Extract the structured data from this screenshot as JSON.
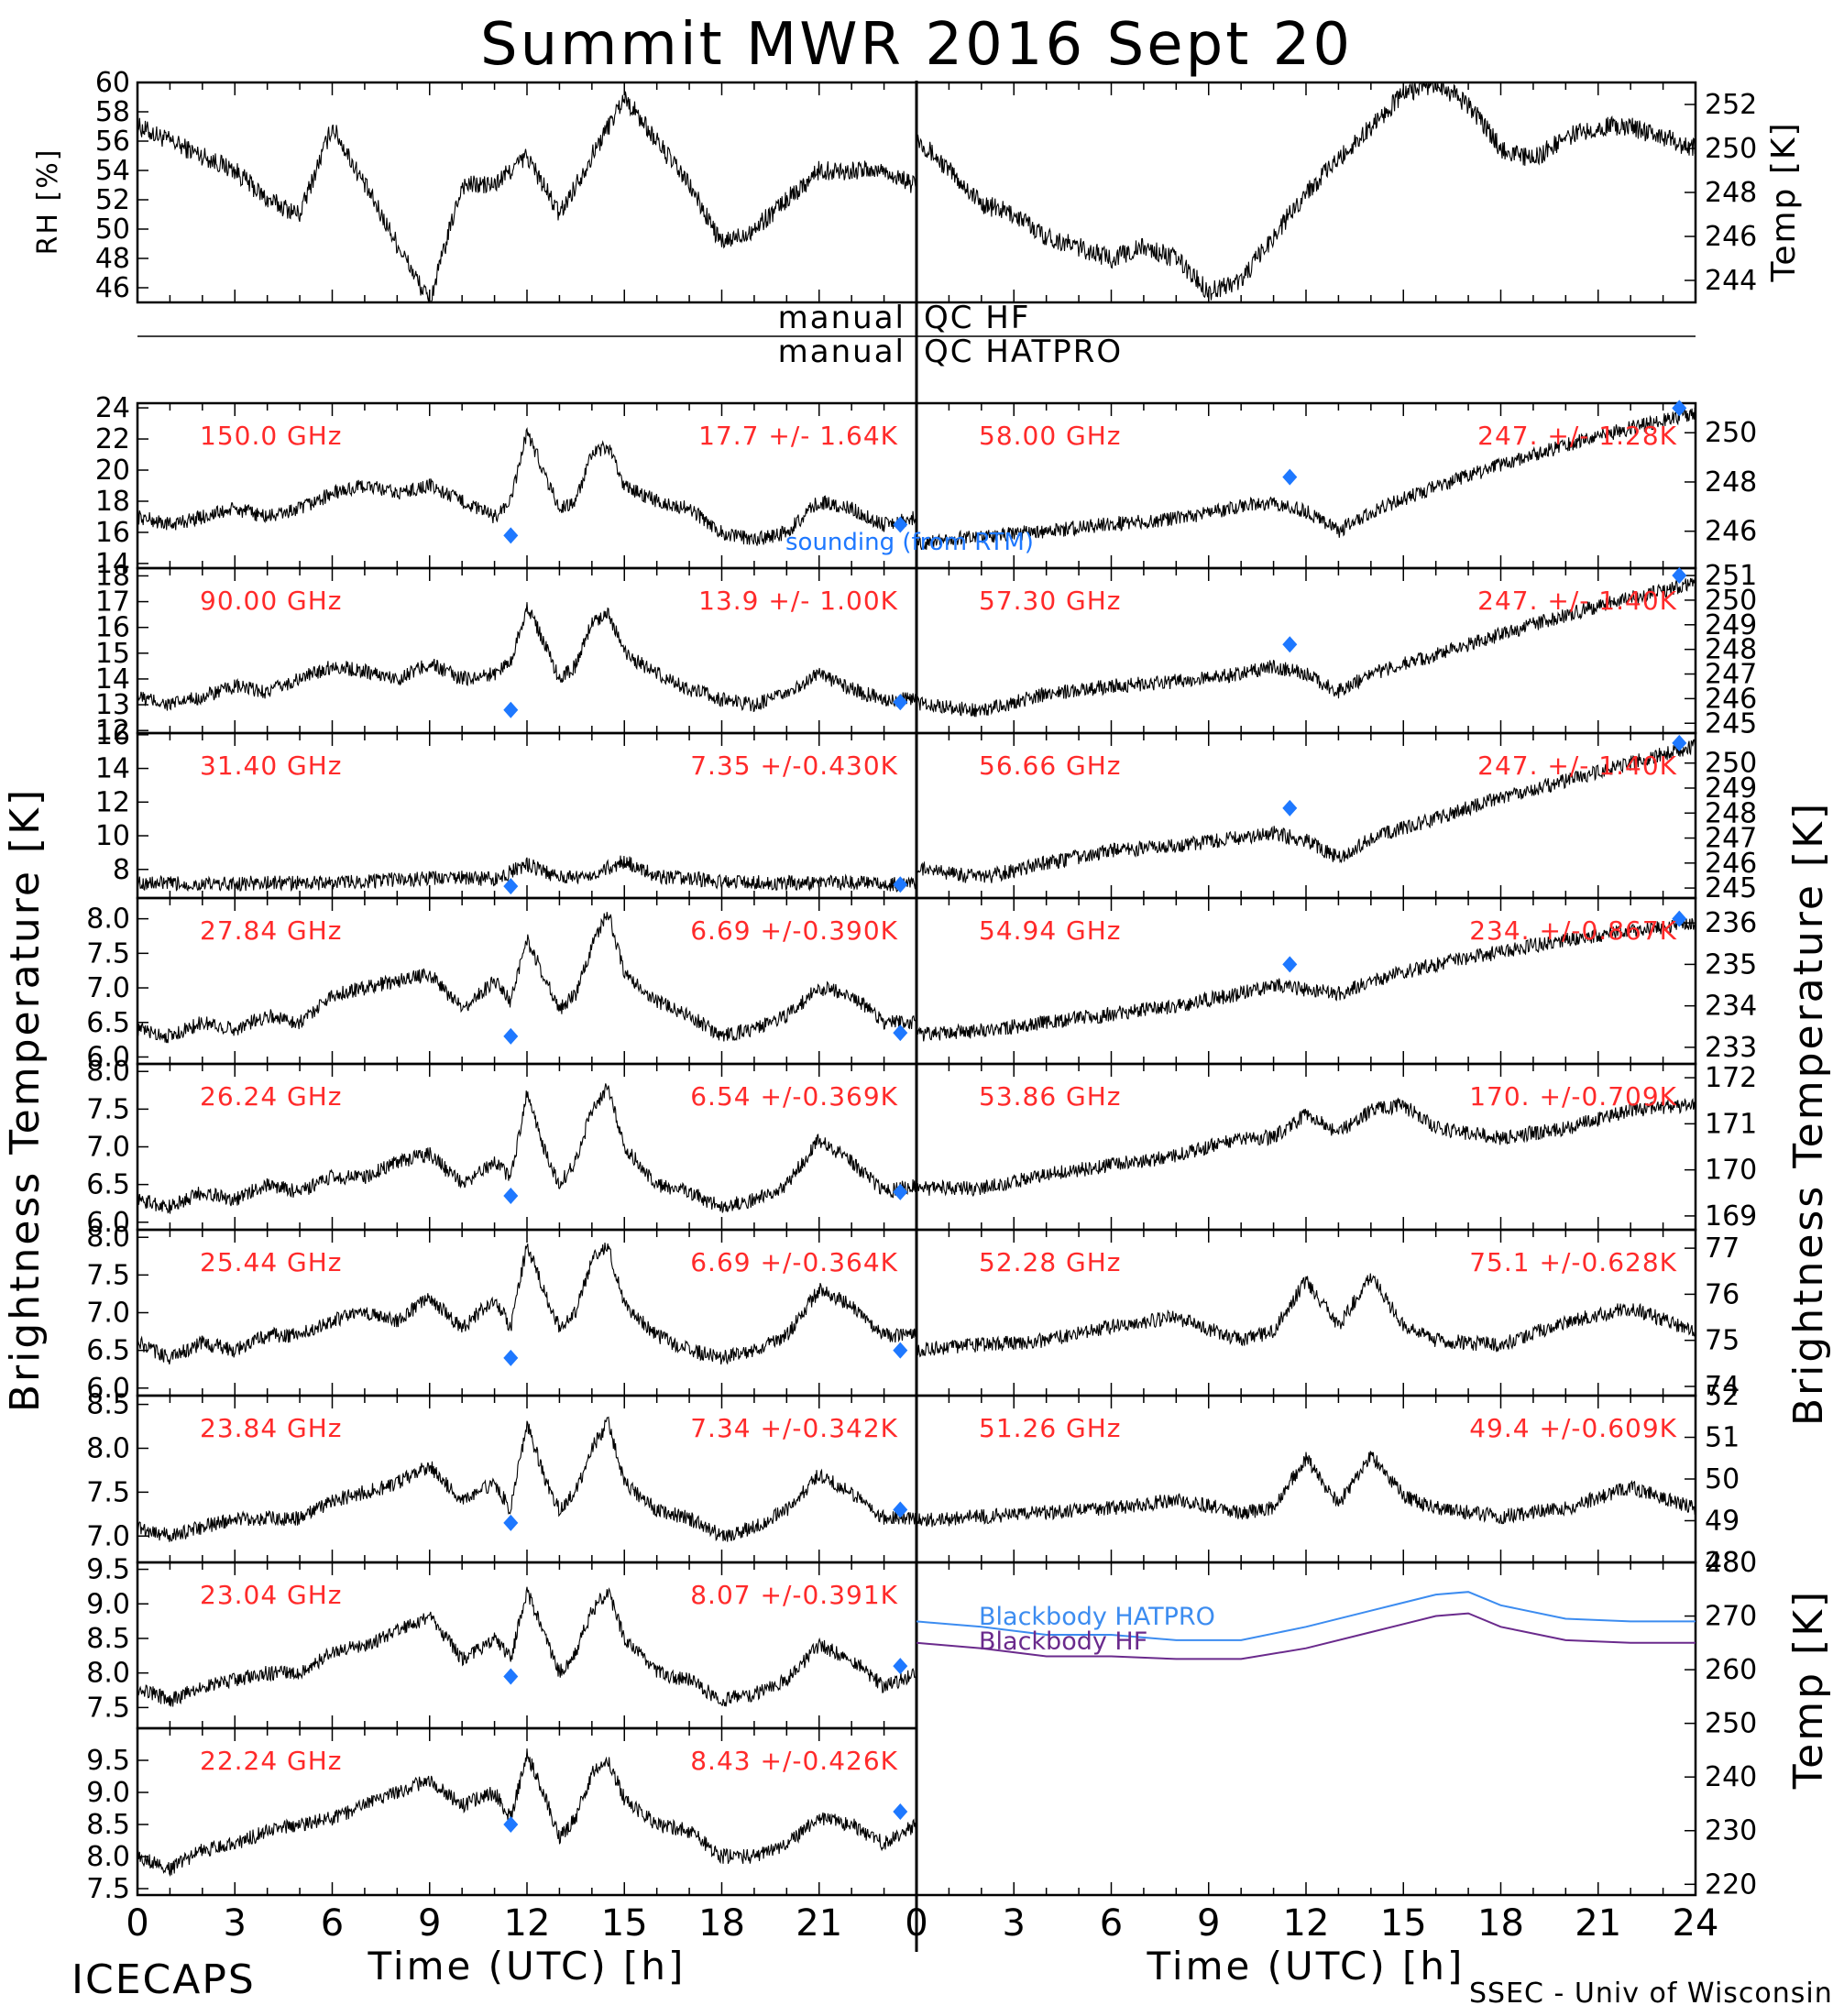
{
  "title": "Summit MWR 2016 Sept 20",
  "footer": {
    "left_label": "ICECAPS",
    "right_label": "SSEC - Univ of Wisconsin"
  },
  "axis_labels": {
    "time_left": "Time (UTC) [h]",
    "time_right": "Time (UTC) [h]",
    "bt_left": "Brightness Temperature [K]",
    "bt_right": "Brightness Temperature [K]",
    "rh": "RH [%]",
    "temp_top": "Temp [K]",
    "temp_bottom": "Temp [K]"
  },
  "qc_labels": {
    "hf_left": "manual",
    "hf_right": "QC HF",
    "hatpro_left": "manual",
    "hatpro_right": "QC HATPRO"
  },
  "sounding_label": "sounding (from RTM)",
  "colors": {
    "data": "#000000",
    "annotation": "#ff2a2a",
    "sounding": "#1e78ff",
    "blackbody_hatpro": "#3c8cf0",
    "blackbody_hf": "#6a2a8c"
  },
  "time_ticks": [
    "0",
    "3",
    "6",
    "9",
    "12",
    "15",
    "18",
    "21",
    "24"
  ],
  "time_ticks_left_visible": [
    "0",
    "3",
    "6",
    "9",
    "12",
    "15",
    "18",
    "21"
  ],
  "chart_data": [
    {
      "id": "rh",
      "type": "line",
      "ylabel": "RH [%]",
      "ylim": [
        45,
        60
      ],
      "yticks": [
        "46",
        "48",
        "50",
        "52",
        "54",
        "56",
        "58",
        "60"
      ],
      "x": [
        0,
        1,
        2,
        3,
        4,
        5,
        6,
        7,
        8,
        9,
        10,
        11,
        12,
        13,
        14,
        15,
        16,
        17,
        18,
        19,
        20,
        21,
        22,
        23,
        23.9
      ],
      "values": [
        57,
        56,
        55,
        54,
        52,
        51,
        57,
        53,
        49,
        45,
        53,
        53,
        55,
        51,
        55,
        59,
        56,
        53,
        49,
        50,
        52,
        54,
        54,
        54,
        53
      ]
    },
    {
      "id": "air-temp",
      "type": "line",
      "ylabel": "Temp [K]",
      "ylim": [
        243,
        253
      ],
      "yticks": [
        "244",
        "246",
        "248",
        "250",
        "252"
      ],
      "x": [
        0,
        1,
        2,
        3,
        4,
        5,
        6,
        7,
        8,
        9,
        10,
        11,
        12,
        13,
        14,
        15,
        16,
        17,
        18,
        19,
        20,
        21,
        22,
        23,
        23.9
      ],
      "values": [
        250.5,
        249,
        247.5,
        247,
        246,
        245.5,
        245,
        245.5,
        245,
        243.5,
        244,
        246,
        248,
        249.5,
        251,
        252.5,
        253,
        252,
        250,
        249.5,
        250.5,
        251,
        251,
        250.5,
        250
      ]
    },
    {
      "id": "tb-150",
      "type": "line",
      "freq_label": "150.0 GHz",
      "stats_label": "17.7 +/-  1.64K",
      "ylim": [
        13.7,
        24.3
      ],
      "yticks": [
        "14",
        "16",
        "18",
        "20",
        "22",
        "24"
      ],
      "x": [
        0,
        1,
        2,
        3,
        4,
        5,
        6,
        7,
        8,
        9,
        10,
        11,
        11.5,
        12,
        12.5,
        13,
        13.5,
        14,
        14.5,
        15,
        16,
        17,
        18,
        19,
        20,
        21,
        22,
        23,
        24
      ],
      "values": [
        17,
        16.5,
        17,
        17.5,
        17,
        17.5,
        18.5,
        19,
        18.5,
        19,
        18,
        17,
        18,
        22.5,
        20,
        17.5,
        18,
        21,
        21.5,
        19,
        18,
        17.5,
        16,
        15.5,
        16,
        18,
        17.5,
        16.5,
        17
      ],
      "sounding": [
        [
          11.5,
          15.8
        ],
        [
          23.5,
          16.5
        ]
      ]
    },
    {
      "id": "tb-90",
      "type": "line",
      "freq_label": "90.00 GHz",
      "stats_label": "13.9 +/-  1.00K",
      "ylim": [
        11.9,
        18.3
      ],
      "yticks": [
        "12",
        "13",
        "14",
        "15",
        "16",
        "17",
        "18"
      ],
      "x": [
        0,
        1,
        2,
        3,
        4,
        5,
        6,
        7,
        8,
        9,
        10,
        11,
        11.5,
        12,
        12.5,
        13,
        13.5,
        14,
        14.5,
        15,
        16,
        17,
        18,
        19,
        20,
        21,
        22,
        23,
        24
      ],
      "values": [
        13.3,
        13,
        13.3,
        13.7,
        13.5,
        14,
        14.5,
        14.3,
        14,
        14.6,
        14,
        14.2,
        14.7,
        16.8,
        15.5,
        14,
        14.5,
        16.2,
        16.6,
        15,
        14.2,
        13.6,
        13.2,
        13,
        13.4,
        14.2,
        13.6,
        13.2,
        13.2
      ],
      "sounding": [
        [
          11.5,
          12.8
        ],
        [
          23.5,
          13.1
        ]
      ]
    },
    {
      "id": "tb-31",
      "type": "line",
      "freq_label": "31.40 GHz",
      "stats_label": "7.35 +/-0.430K",
      "ylim": [
        6.3,
        16.1
      ],
      "yticks": [
        "8",
        "10",
        "12",
        "14",
        "16"
      ],
      "x": [
        0,
        2,
        4,
        6,
        8,
        10,
        11,
        12,
        13,
        14,
        15,
        16,
        18,
        20,
        22,
        24
      ],
      "values": [
        7.2,
        7.1,
        7.2,
        7.2,
        7.4,
        7.5,
        7.4,
        8.3,
        7.5,
        7.7,
        8.5,
        7.6,
        7.3,
        7.2,
        7.2,
        7.1
      ],
      "sounding": [
        [
          11.5,
          7.0
        ],
        [
          23.5,
          7.1
        ]
      ]
    },
    {
      "id": "tb-27",
      "type": "line",
      "freq_label": "27.84 GHz",
      "stats_label": "6.69 +/-0.390K",
      "ylim": [
        5.9,
        8.3
      ],
      "yticks": [
        "6.0",
        "6.5",
        "7.0",
        "7.5",
        "8.0"
      ],
      "x": [
        0,
        1,
        2,
        3,
        4,
        5,
        6,
        7,
        8,
        9,
        10,
        11,
        11.5,
        12,
        12.5,
        13,
        13.5,
        14,
        14.5,
        15,
        16,
        17,
        18,
        19,
        20,
        21,
        22,
        23,
        24
      ],
      "values": [
        6.4,
        6.3,
        6.5,
        6.4,
        6.6,
        6.5,
        6.9,
        7.0,
        7.1,
        7.2,
        6.7,
        7.1,
        6.8,
        7.7,
        7.2,
        6.7,
        6.9,
        7.6,
        8.1,
        7.2,
        6.8,
        6.6,
        6.3,
        6.4,
        6.6,
        7.0,
        6.9,
        6.5,
        6.5
      ],
      "sounding": [
        [
          11.5,
          6.3
        ],
        [
          23.5,
          6.35
        ]
      ]
    },
    {
      "id": "tb-26",
      "type": "line",
      "freq_label": "26.24 GHz",
      "stats_label": "6.54 +/-0.369K",
      "ylim": [
        5.9,
        8.1
      ],
      "yticks": [
        "6.0",
        "6.5",
        "7.0",
        "7.5",
        "8.0"
      ],
      "x": [
        0,
        1,
        2,
        3,
        4,
        5,
        6,
        7,
        8,
        9,
        10,
        11,
        11.5,
        12,
        12.5,
        13,
        13.5,
        14,
        14.5,
        15,
        16,
        17,
        18,
        19,
        20,
        21,
        22,
        23,
        24
      ],
      "values": [
        6.3,
        6.2,
        6.4,
        6.3,
        6.5,
        6.4,
        6.6,
        6.6,
        6.8,
        6.9,
        6.5,
        6.8,
        6.6,
        7.7,
        7.0,
        6.5,
        6.8,
        7.5,
        7.8,
        7.0,
        6.5,
        6.4,
        6.2,
        6.3,
        6.5,
        7.1,
        6.8,
        6.4,
        6.5
      ],
      "sounding": [
        [
          11.5,
          6.35
        ],
        [
          23.5,
          6.4
        ]
      ]
    },
    {
      "id": "tb-25",
      "type": "line",
      "freq_label": "25.44 GHz",
      "stats_label": "6.69 +/-0.364K",
      "ylim": [
        5.9,
        8.1
      ],
      "yticks": [
        "6.0",
        "6.5",
        "7.0",
        "7.5",
        "8.0"
      ],
      "x": [
        0,
        1,
        2,
        3,
        4,
        5,
        6,
        7,
        8,
        9,
        10,
        11,
        11.5,
        12,
        12.5,
        13,
        13.5,
        14,
        14.5,
        15,
        16,
        17,
        18,
        19,
        20,
        21,
        22,
        23,
        24
      ],
      "values": [
        6.6,
        6.4,
        6.6,
        6.5,
        6.7,
        6.7,
        6.9,
        7.0,
        6.9,
        7.2,
        6.8,
        7.2,
        6.8,
        7.9,
        7.3,
        6.8,
        7.0,
        7.7,
        7.9,
        7.1,
        6.7,
        6.5,
        6.4,
        6.5,
        6.7,
        7.3,
        7.1,
        6.7,
        6.7
      ],
      "sounding": [
        [
          11.5,
          6.4
        ],
        [
          23.5,
          6.5
        ]
      ]
    },
    {
      "id": "tb-23-84",
      "type": "line",
      "freq_label": "23.84 GHz",
      "stats_label": "7.34 +/-0.342K",
      "ylim": [
        6.7,
        8.6
      ],
      "yticks": [
        "7.0",
        "7.5",
        "8.0",
        "8.5"
      ],
      "x": [
        0,
        1,
        2,
        3,
        4,
        5,
        6,
        7,
        8,
        9,
        10,
        11,
        11.5,
        12,
        12.5,
        13,
        13.5,
        14,
        14.5,
        15,
        16,
        17,
        18,
        19,
        20,
        21,
        22,
        23,
        24
      ],
      "values": [
        7.1,
        7.0,
        7.1,
        7.2,
        7.2,
        7.2,
        7.4,
        7.5,
        7.6,
        7.8,
        7.4,
        7.6,
        7.3,
        8.3,
        7.7,
        7.3,
        7.5,
        8.0,
        8.3,
        7.6,
        7.3,
        7.2,
        7.0,
        7.1,
        7.3,
        7.7,
        7.5,
        7.2,
        7.2
      ],
      "sounding": [
        [
          11.5,
          7.15
        ],
        [
          23.5,
          7.3
        ]
      ]
    },
    {
      "id": "tb-23-04",
      "type": "line",
      "freq_label": "23.04 GHz",
      "stats_label": "8.07 +/-0.391K",
      "ylim": [
        7.2,
        9.6
      ],
      "yticks": [
        "7.5",
        "8.0",
        "8.5",
        "9.0",
        "9.5"
      ],
      "x": [
        0,
        1,
        2,
        3,
        4,
        5,
        6,
        7,
        8,
        9,
        10,
        11,
        11.5,
        12,
        12.5,
        13,
        13.5,
        14,
        14.5,
        15,
        16,
        17,
        18,
        19,
        20,
        21,
        22,
        23,
        24
      ],
      "values": [
        7.8,
        7.6,
        7.8,
        7.9,
        8.0,
        8.0,
        8.3,
        8.4,
        8.6,
        8.8,
        8.2,
        8.5,
        8.2,
        9.2,
        8.6,
        8.0,
        8.3,
        8.9,
        9.2,
        8.5,
        8.0,
        7.9,
        7.6,
        7.7,
        7.9,
        8.4,
        8.2,
        7.8,
        8.0
      ],
      "sounding": [
        [
          11.5,
          7.95
        ],
        [
          23.5,
          8.1
        ]
      ]
    },
    {
      "id": "tb-22-24",
      "type": "line",
      "freq_label": "22.24 GHz",
      "stats_label": "8.43 +/-0.426K",
      "ylim": [
        7.4,
        10.0
      ],
      "yticks": [
        "7.5",
        "8.0",
        "8.5",
        "9.0",
        "9.5"
      ],
      "x": [
        0,
        1,
        2,
        3,
        4,
        5,
        6,
        7,
        8,
        9,
        10,
        11,
        11.5,
        12,
        12.5,
        13,
        13.5,
        14,
        14.5,
        15,
        16,
        17,
        18,
        19,
        20,
        21,
        22,
        23,
        24
      ],
      "values": [
        8.0,
        7.8,
        8.1,
        8.2,
        8.4,
        8.5,
        8.6,
        8.8,
        9.0,
        9.2,
        8.8,
        9.0,
        8.6,
        9.6,
        9.0,
        8.3,
        8.6,
        9.3,
        9.5,
        8.9,
        8.5,
        8.4,
        8.0,
        8.0,
        8.2,
        8.6,
        8.5,
        8.2,
        8.5
      ],
      "sounding": [
        [
          11.5,
          8.5
        ],
        [
          23.5,
          8.7
        ]
      ]
    },
    {
      "id": "tb-58",
      "type": "line",
      "freq_label": "58.00 GHz",
      "stats_label": "247. +/-  1.28K",
      "ylim": [
        244.5,
        251.2
      ],
      "yticks": [
        "246",
        "248",
        "250"
      ],
      "x": [
        0,
        2,
        4,
        6,
        8,
        10,
        11,
        12,
        13,
        14,
        16,
        18,
        20,
        22,
        24
      ],
      "values": [
        245.5,
        245.8,
        246,
        246.3,
        246.5,
        247,
        247.2,
        246.8,
        246,
        246.8,
        247.8,
        248.7,
        249.5,
        250.2,
        250.8
      ],
      "sounding": [
        [
          11.5,
          248.2
        ],
        [
          23.5,
          251
        ]
      ]
    },
    {
      "id": "tb-57-3",
      "type": "line",
      "freq_label": "57.30 GHz",
      "stats_label": "247. +/-  1.40K",
      "ylim": [
        244.6,
        251.3
      ],
      "yticks": [
        "245",
        "246",
        "247",
        "248",
        "249",
        "250",
        "251"
      ],
      "x": [
        0,
        2,
        4,
        6,
        8,
        10,
        11,
        12,
        13,
        14,
        16,
        18,
        20,
        22,
        24
      ],
      "values": [
        245.8,
        245.5,
        246.2,
        246.5,
        246.7,
        247,
        247.3,
        247,
        246.3,
        247,
        247.8,
        248.6,
        249.4,
        250.1,
        250.7
      ],
      "sounding": [
        [
          11.5,
          248.2
        ],
        [
          23.5,
          251
        ]
      ]
    },
    {
      "id": "tb-56-66",
      "type": "line",
      "freq_label": "56.66 GHz",
      "stats_label": "247. +/-  1.40K",
      "ylim": [
        244.6,
        251.2
      ],
      "yticks": [
        "245",
        "246",
        "247",
        "248",
        "249",
        "250"
      ],
      "x": [
        0,
        2,
        4,
        6,
        8,
        10,
        11,
        12,
        13,
        14,
        16,
        18,
        20,
        22,
        24
      ],
      "values": [
        245.8,
        245.4,
        246,
        246.5,
        246.7,
        247,
        247.2,
        246.9,
        246.2,
        247,
        247.8,
        248.6,
        249.3,
        250,
        250.7
      ],
      "sounding": [
        [
          11.5,
          248.2
        ],
        [
          23.5,
          250.8
        ]
      ]
    },
    {
      "id": "tb-54-94",
      "type": "line",
      "freq_label": "54.94 GHz",
      "stats_label": "234. +/-0.867K",
      "ylim": [
        232.6,
        236.6
      ],
      "yticks": [
        "233",
        "234",
        "235",
        "236"
      ],
      "x": [
        0,
        2,
        4,
        6,
        8,
        10,
        11,
        12,
        13,
        14,
        16,
        18,
        20,
        22,
        24
      ],
      "values": [
        233.3,
        233.4,
        233.6,
        233.8,
        234,
        234.3,
        234.5,
        234.4,
        234.3,
        234.6,
        235,
        235.3,
        235.6,
        235.8,
        236
      ],
      "sounding": [
        [
          11.5,
          235
        ],
        [
          23.5,
          236.1
        ]
      ]
    },
    {
      "id": "tb-53-86",
      "type": "line",
      "freq_label": "53.86 GHz",
      "stats_label": "170. +/-0.709K",
      "ylim": [
        168.7,
        172.3
      ],
      "yticks": [
        "169",
        "170",
        "171",
        "172"
      ],
      "x": [
        0,
        2,
        4,
        6,
        8,
        10,
        11,
        12,
        13,
        14,
        15,
        16,
        18,
        20,
        22,
        24
      ],
      "values": [
        169.6,
        169.6,
        169.9,
        170.1,
        170.3,
        170.7,
        170.7,
        171.2,
        170.8,
        171.3,
        171.4,
        170.9,
        170.7,
        170.9,
        171.3,
        171.4
      ],
      "sounding": []
    },
    {
      "id": "tb-52-28",
      "type": "line",
      "freq_label": "52.28 GHz",
      "stats_label": "75.1 +/-0.628K",
      "ylim": [
        73.8,
        77.4
      ],
      "yticks": [
        "74",
        "75",
        "76",
        "77"
      ],
      "x": [
        0,
        2,
        4,
        6,
        8,
        10,
        11,
        12,
        13,
        14,
        15,
        16,
        18,
        20,
        22,
        24
      ],
      "values": [
        74.8,
        74.9,
        75.0,
        75.3,
        75.5,
        75.0,
        75.2,
        76.3,
        75.3,
        76.4,
        75.3,
        75.0,
        74.9,
        75.4,
        75.7,
        75.2
      ],
      "sounding": []
    },
    {
      "id": "tb-51-26",
      "type": "line",
      "freq_label": "51.26 GHz",
      "stats_label": "49.4 +/-0.609K",
      "ylim": [
        48.0,
        52.0
      ],
      "yticks": [
        "48",
        "49",
        "50",
        "51",
        "52"
      ],
      "x": [
        0,
        2,
        4,
        6,
        8,
        10,
        11,
        12,
        13,
        14,
        15,
        16,
        18,
        20,
        22,
        24
      ],
      "values": [
        49.0,
        49.1,
        49.2,
        49.3,
        49.5,
        49.2,
        49.3,
        50.5,
        49.4,
        50.6,
        49.6,
        49.3,
        49.1,
        49.3,
        49.8,
        49.3
      ],
      "sounding": []
    },
    {
      "id": "blackbody",
      "type": "line",
      "ylabel": "Temp [K]",
      "ylim": [
        218,
        280
      ],
      "yticks": [
        "220",
        "230",
        "240",
        "250",
        "260",
        "270",
        "280"
      ],
      "x": [
        0,
        2,
        4,
        6,
        8,
        10,
        12,
        14,
        16,
        17,
        18,
        20,
        22,
        24
      ],
      "series": [
        {
          "name": "Blackbody HATPRO",
          "values": [
            269,
            268,
            266.5,
            266.5,
            265.5,
            265.5,
            268,
            271,
            274,
            274.5,
            272,
            269.5,
            269,
            269
          ]
        },
        {
          "name": "Blackbody HF",
          "values": [
            265,
            264,
            262.5,
            262.5,
            262,
            262,
            264,
            267,
            270,
            270.5,
            268,
            265.5,
            265,
            265
          ]
        }
      ]
    }
  ]
}
